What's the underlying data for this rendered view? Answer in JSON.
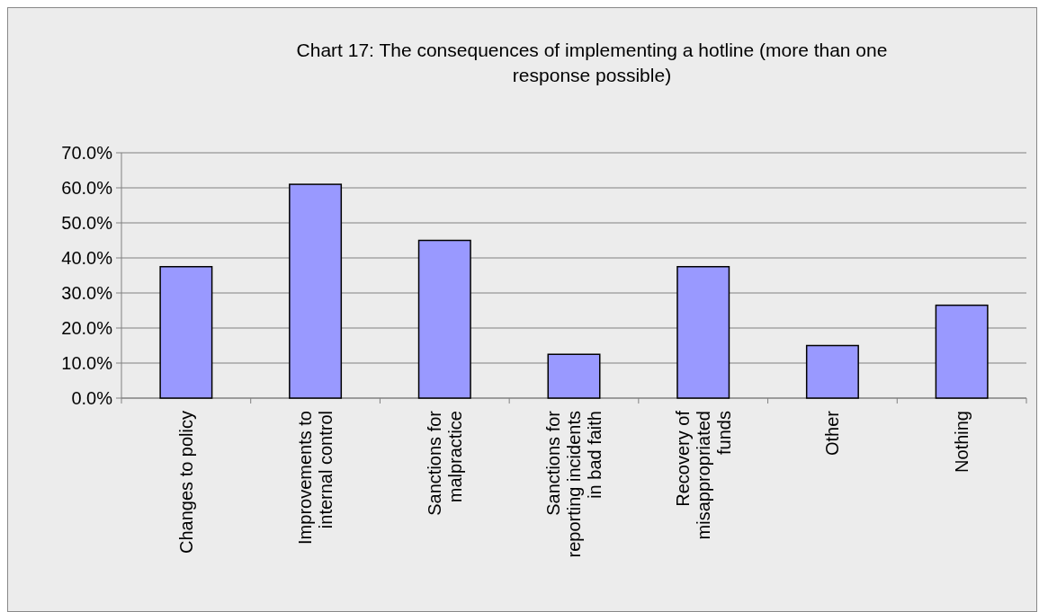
{
  "chart_data": {
    "type": "bar",
    "title": "Chart 17: The consequences of implementing a hotline (more than one response possible)",
    "categories": [
      "Changes to policy",
      "Improvements to internal control",
      "Sanctions for malpractice",
      "Sanctions for reporting incidents in bad faith",
      "Recovery of misappropriated funds",
      "Other",
      "Nothing"
    ],
    "values": [
      37.5,
      61.0,
      45.0,
      12.5,
      37.5,
      15.0,
      26.5
    ],
    "color": "#9999ff",
    "ylim": [
      0,
      70
    ],
    "yticks": [
      {
        "value": 0,
        "label": "0.0%"
      },
      {
        "value": 10,
        "label": "10.0%"
      },
      {
        "value": 20,
        "label": "20.0%"
      },
      {
        "value": 30,
        "label": "30.0%"
      },
      {
        "value": 40,
        "label": "40.0%"
      },
      {
        "value": 50,
        "label": "50.0%"
      },
      {
        "value": 60,
        "label": "60.0%"
      },
      {
        "value": 70,
        "label": "70.0%"
      }
    ],
    "grid": "y"
  }
}
